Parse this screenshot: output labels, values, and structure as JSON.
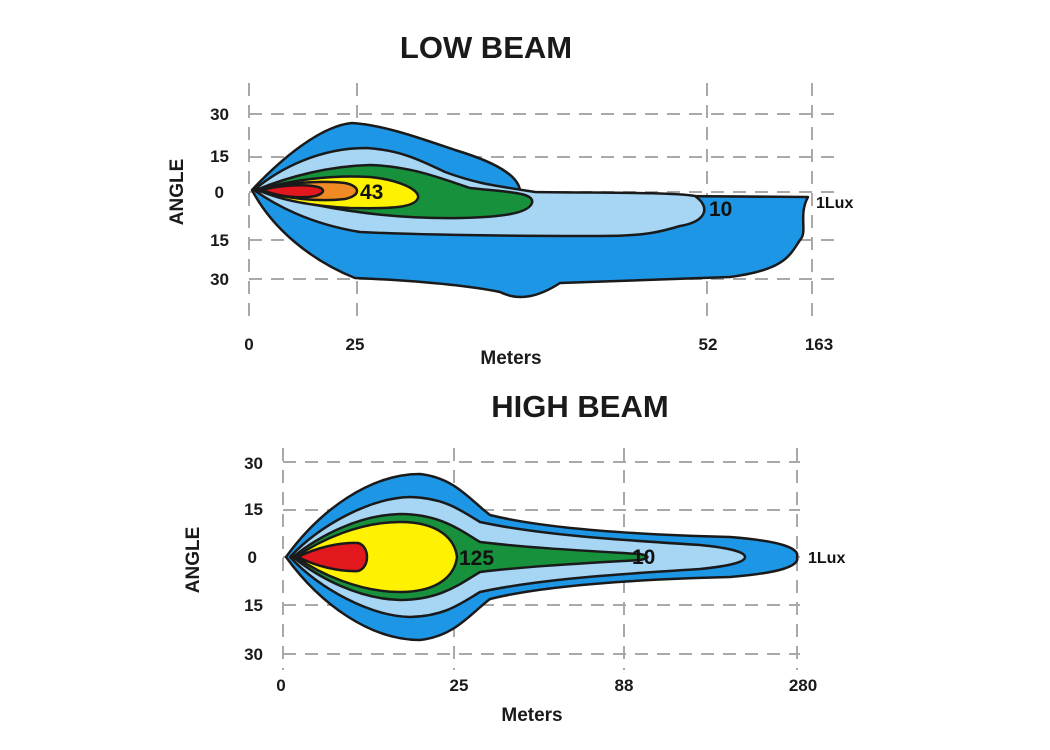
{
  "colors": {
    "lux_1": "#1e96e6",
    "lux_10": "#a6d6f3",
    "green": "#17913c",
    "yellow": "#fff200",
    "orange": "#f08a24",
    "red": "#e3171e"
  },
  "low_beam": {
    "title": "LOW BEAM",
    "y_axis_label": "ANGLE",
    "x_axis_label": "Meters",
    "y_ticks": [
      "30",
      "15",
      "0",
      "15",
      "30"
    ],
    "x_ticks": [
      "0",
      "25",
      "52",
      "163"
    ],
    "labels": {
      "inner": "43",
      "mid": "10",
      "outer": "1Lux"
    }
  },
  "high_beam": {
    "title": "HIGH BEAM",
    "y_axis_label": "ANGLE",
    "x_axis_label": "Meters",
    "y_ticks": [
      "30",
      "15",
      "0",
      "15",
      "30"
    ],
    "x_ticks": [
      "0",
      "25",
      "88",
      "280"
    ],
    "labels": {
      "inner": "125",
      "mid": "10",
      "outer": "1Lux"
    }
  }
}
